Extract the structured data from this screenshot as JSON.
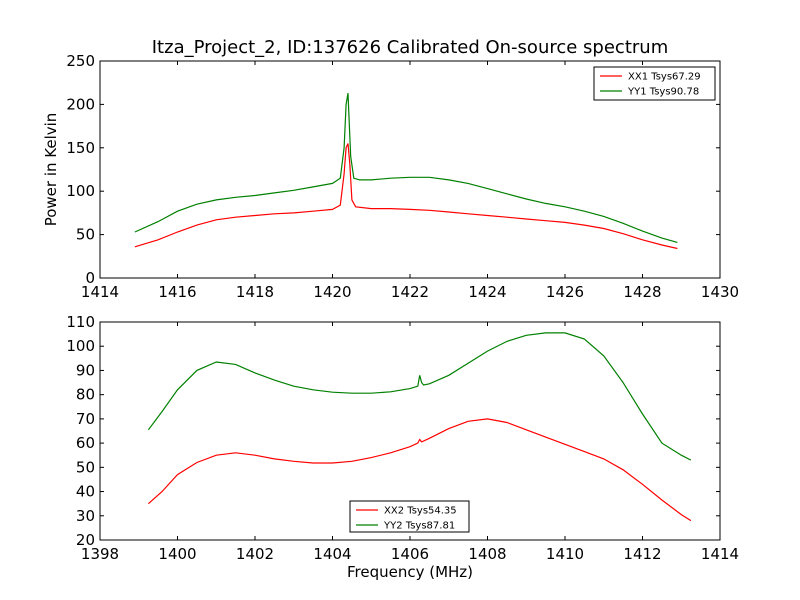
{
  "title": "Itza_Project_2, ID:137626 Calibrated On-source spectrum",
  "colors": {
    "red": "#ff0000",
    "green": "#008000"
  },
  "chart_data": [
    {
      "type": "line",
      "title": "Itza_Project_2, ID:137626 Calibrated On-source spectrum",
      "xlabel": "",
      "ylabel": "Power in Kelvin",
      "xlim": [
        1414,
        1430
      ],
      "ylim": [
        0,
        250
      ],
      "xticks": [
        1414,
        1416,
        1418,
        1420,
        1422,
        1424,
        1426,
        1428,
        1430
      ],
      "yticks": [
        0,
        50,
        100,
        150,
        200,
        250
      ],
      "grid": false,
      "legend_position": "top-right",
      "series": [
        {
          "name": "XX1 Tsys67.29",
          "color": "#ff0000",
          "x": [
            1414.9,
            1415.5,
            1416.0,
            1416.5,
            1417.0,
            1417.5,
            1418.0,
            1418.5,
            1419.0,
            1419.5,
            1420.0,
            1420.2,
            1420.3,
            1420.35,
            1420.4,
            1420.45,
            1420.5,
            1420.6,
            1421.0,
            1421.5,
            1422.0,
            1422.5,
            1423.0,
            1423.5,
            1424.0,
            1424.5,
            1425.0,
            1425.5,
            1426.0,
            1426.5,
            1427.0,
            1427.5,
            1428.0,
            1428.5,
            1428.9
          ],
          "y": [
            36,
            44,
            53,
            61,
            67,
            70,
            72,
            74,
            75,
            77,
            79,
            84,
            120,
            150,
            155,
            130,
            90,
            82,
            80,
            80,
            79,
            78,
            76,
            74,
            72,
            70,
            68,
            66,
            64,
            61,
            57,
            51,
            44,
            38,
            34
          ]
        },
        {
          "name": "YY1 Tsys90.78",
          "color": "#008000",
          "x": [
            1414.9,
            1415.5,
            1416.0,
            1416.5,
            1417.0,
            1417.5,
            1418.0,
            1418.5,
            1419.0,
            1419.5,
            1420.0,
            1420.2,
            1420.3,
            1420.35,
            1420.4,
            1420.43,
            1420.47,
            1420.55,
            1420.7,
            1421.0,
            1421.5,
            1422.0,
            1422.5,
            1423.0,
            1423.5,
            1424.0,
            1424.5,
            1425.0,
            1425.5,
            1426.0,
            1426.5,
            1427.0,
            1427.5,
            1428.0,
            1428.5,
            1428.9
          ],
          "y": [
            53,
            65,
            77,
            85,
            90,
            93,
            95,
            98,
            101,
            105,
            109,
            115,
            150,
            200,
            213,
            180,
            140,
            115,
            113,
            113,
            115,
            116,
            116,
            113,
            109,
            103,
            97,
            91,
            86,
            82,
            77,
            71,
            63,
            54,
            46,
            41
          ]
        }
      ]
    },
    {
      "type": "line",
      "title": "",
      "xlabel": "Frequency (MHz)",
      "ylabel": "",
      "xlim": [
        1398,
        1414
      ],
      "ylim": [
        20,
        110
      ],
      "xticks": [
        1398,
        1400,
        1402,
        1404,
        1406,
        1408,
        1410,
        1412,
        1414
      ],
      "yticks": [
        20,
        30,
        40,
        50,
        60,
        70,
        80,
        90,
        100,
        110
      ],
      "grid": false,
      "legend_position": "bottom-center",
      "series": [
        {
          "name": "XX2 Tsys54.35",
          "color": "#ff0000",
          "x": [
            1399.25,
            1399.6,
            1400.0,
            1400.5,
            1401.0,
            1401.5,
            1402.0,
            1402.5,
            1403.0,
            1403.5,
            1404.0,
            1404.5,
            1405.0,
            1405.5,
            1406.0,
            1406.2,
            1406.25,
            1406.3,
            1406.5,
            1407.0,
            1407.5,
            1408.0,
            1408.5,
            1409.0,
            1409.5,
            1410.0,
            1410.5,
            1411.0,
            1411.5,
            1412.0,
            1412.5,
            1413.0,
            1413.25
          ],
          "y": [
            35,
            40,
            47,
            52,
            55,
            56,
            55,
            53.5,
            52.5,
            51.8,
            51.8,
            52.5,
            54,
            56,
            58.5,
            60,
            61.5,
            60.5,
            62,
            66,
            69,
            70,
            68.5,
            65.5,
            62.5,
            59.5,
            56.5,
            53.5,
            49,
            43,
            36.5,
            30.5,
            28
          ]
        },
        {
          "name": "YY2 Tsys87.81",
          "color": "#008000",
          "x": [
            1399.25,
            1399.6,
            1400.0,
            1400.5,
            1401.0,
            1401.5,
            1402.0,
            1402.5,
            1403.0,
            1403.5,
            1404.0,
            1404.5,
            1405.0,
            1405.5,
            1406.0,
            1406.2,
            1406.25,
            1406.3,
            1406.35,
            1406.5,
            1407.0,
            1407.5,
            1408.0,
            1408.5,
            1409.0,
            1409.5,
            1410.0,
            1410.5,
            1411.0,
            1411.5,
            1412.0,
            1412.5,
            1413.0,
            1413.25
          ],
          "y": [
            65.5,
            73,
            82,
            90,
            93.5,
            92.5,
            89,
            86,
            83.5,
            82,
            81,
            80.6,
            80.6,
            81.2,
            82.5,
            83.5,
            88,
            85,
            84,
            84.5,
            88,
            93,
            98,
            102,
            104.5,
            105.5,
            105.5,
            103,
            96,
            85,
            72,
            60,
            55,
            53
          ]
        }
      ]
    }
  ]
}
